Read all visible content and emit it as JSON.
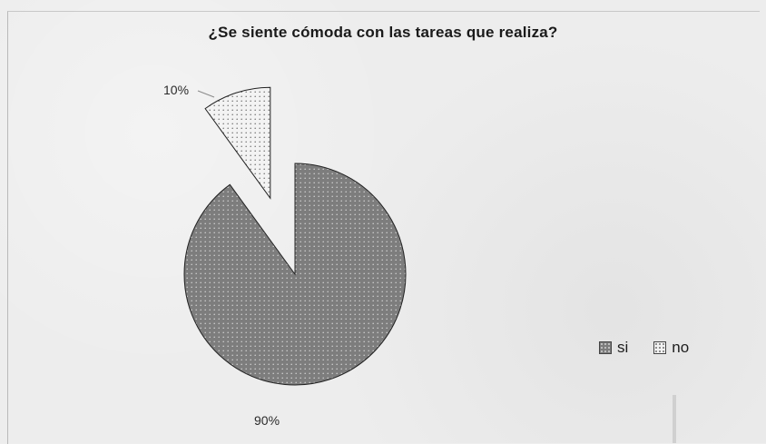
{
  "chart_data": {
    "type": "pie",
    "title": "¿Se siente cómoda con las tareas que realiza?",
    "categories": [
      "si",
      "no"
    ],
    "values": [
      90,
      10
    ],
    "data_labels": [
      "90%",
      "10%"
    ],
    "colors": [
      "#7d7d7d",
      "#efefef"
    ],
    "legend": {
      "placement": "right-bottom",
      "entries": [
        "si",
        "no"
      ]
    },
    "exploded": "no"
  }
}
